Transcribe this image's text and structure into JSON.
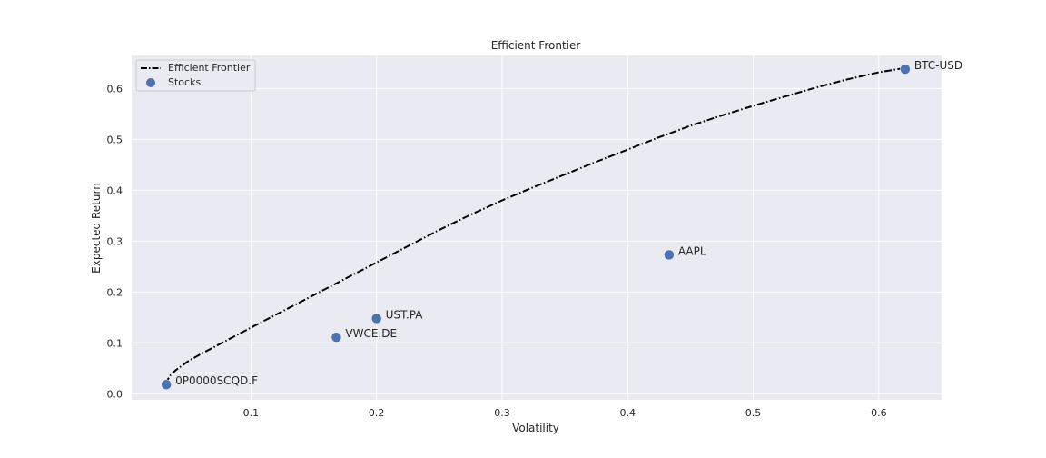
{
  "chart_data": {
    "type": "scatter",
    "title": "Efficient Frontier",
    "xlabel": "Volatility",
    "ylabel": "Expected Return",
    "xlim": [
      0.005,
      0.65
    ],
    "ylim": [
      -0.012,
      0.665
    ],
    "xticks": [
      0.1,
      0.2,
      0.3,
      0.4,
      0.5,
      0.6
    ],
    "yticks": [
      0.0,
      0.1,
      0.2,
      0.3,
      0.4,
      0.5,
      0.6
    ],
    "grid": true,
    "legend": {
      "placement": "top-left",
      "entries": [
        "Efficient Frontier",
        "Stocks"
      ]
    },
    "colors": {
      "background": "#EAEAF2",
      "grid": "#FFFFFF",
      "frontier": "#000000",
      "points": "#4C72B0"
    },
    "series": [
      {
        "name": "Efficient Frontier",
        "style": "dash-dot line",
        "x": [
          0.0326,
          0.0335,
          0.036,
          0.04,
          0.05,
          0.06,
          0.08,
          0.1,
          0.125,
          0.15,
          0.175,
          0.2,
          0.225,
          0.25,
          0.275,
          0.3,
          0.325,
          0.35,
          0.375,
          0.4,
          0.425,
          0.45,
          0.475,
          0.5,
          0.525,
          0.55,
          0.575,
          0.6,
          0.62
        ],
        "y": [
          0.018,
          0.027,
          0.037,
          0.046,
          0.064,
          0.078,
          0.104,
          0.13,
          0.162,
          0.194,
          0.226,
          0.258,
          0.29,
          0.322,
          0.352,
          0.38,
          0.406,
          0.431,
          0.456,
          0.48,
          0.504,
          0.527,
          0.547,
          0.566,
          0.584,
          0.602,
          0.618,
          0.632,
          0.64
        ]
      },
      {
        "name": "Stocks",
        "style": "markers",
        "points": [
          {
            "label": "0P0000SCQD.F",
            "x": 0.0326,
            "y": 0.018
          },
          {
            "label": "VWCE.DE",
            "x": 0.168,
            "y": 0.111
          },
          {
            "label": "UST.PA",
            "x": 0.2,
            "y": 0.148
          },
          {
            "label": "AAPL",
            "x": 0.433,
            "y": 0.273
          },
          {
            "label": "BTC-USD",
            "x": 0.621,
            "y": 0.638
          }
        ]
      }
    ]
  }
}
